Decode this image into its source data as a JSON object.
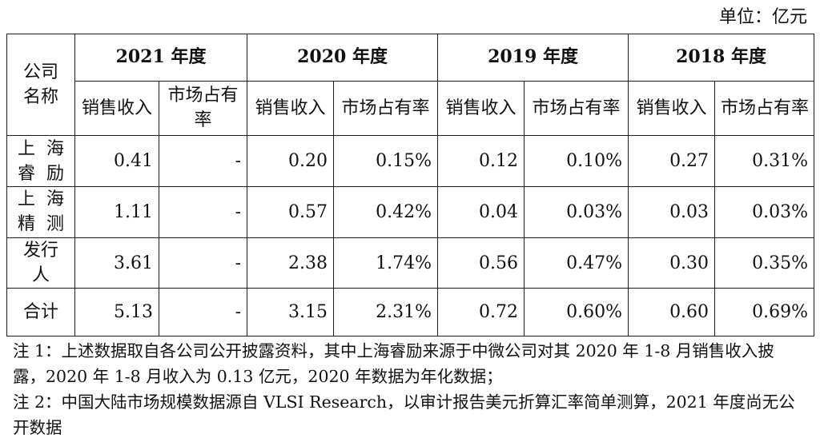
{
  "unit": "单位：亿元",
  "header": {
    "company_col": "公司名称",
    "years": [
      "2021 年度",
      "2020 年度",
      "2019 年度",
      "2018 年度"
    ],
    "sub": {
      "2021": [
        "销售收入",
        "市场占有率"
      ],
      "2020": [
        "销售收入",
        "市场占有率"
      ],
      "2019": [
        "销售收入",
        "市场占有率"
      ],
      "2018": [
        "销售收入",
        "市场占有率"
      ]
    }
  },
  "rows": [
    {
      "name": "上海睿励",
      "values": [
        "0.41",
        "-",
        "0.20",
        "0.15%",
        "0.12",
        "0.10%",
        "0.27",
        "0.31%"
      ]
    },
    {
      "name": "上海精测",
      "values": [
        "1.11",
        "-",
        "0.57",
        "0.42%",
        "0.04",
        "0.03%",
        "0.03",
        "0.03%"
      ]
    },
    {
      "name": "发行人",
      "values": [
        "3.61",
        "-",
        "2.38",
        "1.74%",
        "0.56",
        "0.47%",
        "0.30",
        "0.35%"
      ]
    },
    {
      "name": "合计",
      "values": [
        "5.13",
        "-",
        "3.15",
        "2.31%",
        "0.72",
        "0.60%",
        "0.60",
        "0.69%"
      ]
    }
  ],
  "notes": [
    "注 1：上述数据取自各公司公开披露资料，其中上海睿励来源于中微公司对其 2020 年 1-8 月销售收入披露，2020 年 1-8 月收入为 0.13 亿元，2020 年数据为年化数据；",
    "注 2：中国大陆市场规模数据源自 VLSI Research，以审计报告美元折算汇率简单测算，2021 年度尚无公开数据"
  ]
}
